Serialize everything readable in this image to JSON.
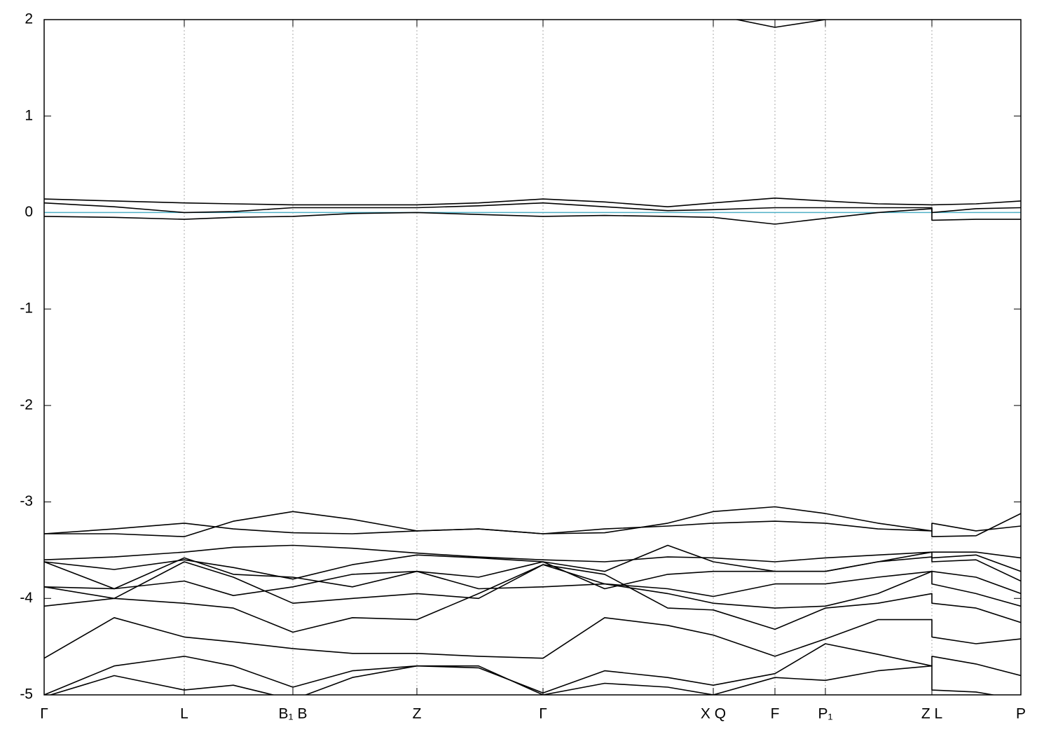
{
  "chart_data": {
    "type": "line",
    "xlim": [
      0,
      139.4
    ],
    "xticks": [
      {
        "value": 0,
        "label": "Γ"
      },
      {
        "value": 20,
        "label": "L"
      },
      {
        "value": 35.5,
        "label": "B₁ B"
      },
      {
        "value": 53.2,
        "label": "Z"
      },
      {
        "value": 71.2,
        "label": "Γ"
      },
      {
        "value": 95.5,
        "label": "X Q"
      },
      {
        "value": 104.3,
        "label": "F"
      },
      {
        "value": 111.5,
        "label": "P₁"
      },
      {
        "value": 126.7,
        "label": "Z L"
      },
      {
        "value": 139.4,
        "label": "P"
      }
    ],
    "ylim": [
      -5,
      2
    ],
    "yticks": [
      -5,
      -4,
      -3,
      -2,
      -1,
      0,
      1,
      2
    ],
    "grid": "x",
    "reference_line": {
      "y": 0,
      "color": "#4fb0c6"
    },
    "x": [
      0,
      10,
      20,
      27,
      35.5,
      44,
      53.2,
      62,
      71.2,
      80,
      89,
      95.5,
      104.3,
      111.5,
      119,
      126.7,
      126.7,
      133,
      139.4
    ],
    "series": [
      {
        "color": "#000000",
        "values": [
          null,
          null,
          null,
          null,
          null,
          null,
          null,
          null,
          null,
          null,
          null,
          2.05,
          1.92,
          2.0,
          null,
          null,
          null,
          null,
          null
        ]
      },
      {
        "color": "#000000",
        "values": [
          0.14,
          0.12,
          0.1,
          0.09,
          0.08,
          0.08,
          0.08,
          0.1,
          0.14,
          0.11,
          0.06,
          0.1,
          0.15,
          0.12,
          0.09,
          0.08,
          0.08,
          0.09,
          0.12
        ]
      },
      {
        "color": "#000000",
        "values": [
          0.1,
          0.06,
          0.0,
          0.01,
          0.05,
          0.05,
          0.05,
          0.07,
          0.1,
          0.06,
          0.02,
          0.03,
          0.05,
          0.05,
          0.05,
          0.05,
          0.0,
          0.04,
          0.05
        ]
      },
      {
        "color": "#000000",
        "values": [
          -0.04,
          -0.05,
          -0.07,
          -0.05,
          -0.04,
          -0.01,
          0.0,
          -0.02,
          -0.04,
          -0.03,
          -0.04,
          -0.05,
          -0.12,
          -0.06,
          0.0,
          0.04,
          -0.08,
          -0.07,
          -0.07
        ]
      },
      {
        "color": "#000000",
        "values": [
          -3.33,
          -3.28,
          -3.22,
          -3.28,
          -3.32,
          -3.33,
          -3.3,
          -3.28,
          -3.33,
          -3.28,
          -3.25,
          -3.22,
          -3.2,
          -3.22,
          -3.28,
          -3.3,
          -3.22,
          -3.3,
          -3.25
        ]
      },
      {
        "color": "#000000",
        "values": [
          -3.33,
          -3.33,
          -3.36,
          -3.2,
          -3.1,
          -3.18,
          -3.3,
          -3.28,
          -3.33,
          -3.32,
          -3.22,
          -3.1,
          -3.05,
          -3.12,
          -3.22,
          -3.3,
          -3.36,
          -3.35,
          -3.12
        ]
      },
      {
        "color": "#000000",
        "values": [
          -3.6,
          -3.57,
          -3.52,
          -3.47,
          -3.45,
          -3.48,
          -3.53,
          -3.57,
          -3.6,
          -3.62,
          -3.57,
          -3.58,
          -3.62,
          -3.58,
          -3.55,
          -3.52,
          -3.52,
          -3.52,
          -3.58
        ]
      },
      {
        "color": "#000000",
        "values": [
          -3.62,
          -3.7,
          -3.6,
          -3.68,
          -3.8,
          -3.65,
          -3.55,
          -3.58,
          -3.62,
          -3.72,
          -3.45,
          -3.62,
          -3.72,
          -3.72,
          -3.62,
          -3.52,
          -3.58,
          -3.55,
          -3.72
        ]
      },
      {
        "color": "#000000",
        "values": [
          -3.62,
          -3.9,
          -3.58,
          -3.75,
          -3.78,
          -3.88,
          -3.72,
          -3.78,
          -3.62,
          -3.9,
          -3.75,
          -3.72,
          -3.72,
          -3.72,
          -3.62,
          -3.57,
          -3.62,
          -3.6,
          -3.82
        ]
      },
      {
        "color": "#000000",
        "values": [
          -3.88,
          -3.9,
          -3.82,
          -3.97,
          -3.88,
          -3.75,
          -3.72,
          -3.9,
          -3.88,
          -3.85,
          -3.9,
          -3.98,
          -3.85,
          -3.85,
          -3.78,
          -3.72,
          -3.72,
          -3.78,
          -3.95
        ]
      },
      {
        "color": "#000000",
        "values": [
          -3.88,
          -4.0,
          -3.62,
          -3.78,
          -4.05,
          -4.0,
          -3.95,
          -4.0,
          -3.65,
          -3.85,
          -3.95,
          -4.05,
          -4.1,
          -4.08,
          -3.95,
          -3.72,
          -3.85,
          -3.95,
          -4.08
        ]
      },
      {
        "color": "#000000",
        "values": [
          -4.08,
          -4.0,
          -4.05,
          -4.1,
          -4.35,
          -4.2,
          -4.22,
          -3.95,
          -3.65,
          -3.75,
          -4.1,
          -4.12,
          -4.32,
          -4.1,
          -4.05,
          -3.95,
          -4.05,
          -4.1,
          -4.25
        ]
      },
      {
        "color": "#000000",
        "values": [
          -4.62,
          -4.2,
          -4.4,
          -4.45,
          -4.52,
          -4.57,
          -4.57,
          -4.6,
          -4.62,
          -4.2,
          -4.28,
          -4.38,
          -4.6,
          -4.42,
          -4.22,
          -4.22,
          -4.4,
          -4.47,
          -4.42
        ]
      },
      {
        "color": "#000000",
        "values": [
          -5.0,
          -4.7,
          -4.6,
          -4.7,
          -4.92,
          -4.75,
          -4.7,
          -4.72,
          -4.98,
          -4.75,
          -4.82,
          -4.9,
          -4.78,
          -4.47,
          -4.58,
          -4.7,
          -4.6,
          -4.68,
          -4.8
        ]
      },
      {
        "color": "#000000",
        "values": [
          -5.02,
          -4.8,
          -4.95,
          -4.9,
          -5.05,
          -4.82,
          -4.7,
          -4.7,
          -5.0,
          -4.88,
          -4.92,
          -5.0,
          -4.82,
          -4.85,
          -4.75,
          -4.7,
          -4.95,
          -4.97,
          -5.05
        ]
      }
    ]
  }
}
